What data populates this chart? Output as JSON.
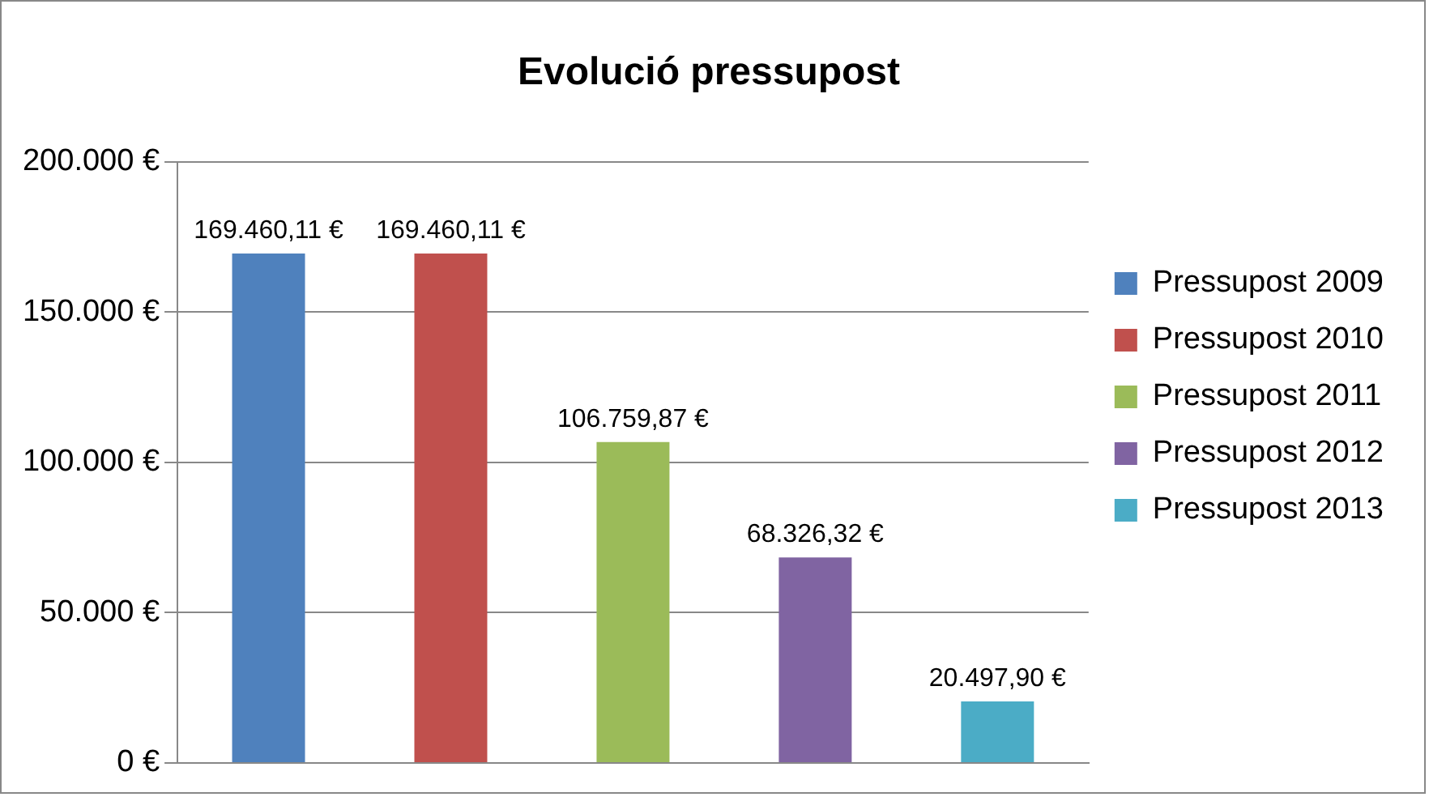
{
  "chart_data": {
    "type": "bar",
    "title": "Evolució pressupost",
    "categories": [
      null
    ],
    "series": [
      {
        "name": "Pressupost 2009",
        "color": "#4f81bd",
        "values": [
          169460.11
        ],
        "value_labels": [
          "169.460,11 €"
        ]
      },
      {
        "name": "Pressupost 2010",
        "color": "#c0504d",
        "values": [
          169460.11
        ],
        "value_labels": [
          "169.460,11 €"
        ]
      },
      {
        "name": "Pressupost 2011",
        "color": "#9bbb59",
        "values": [
          106759.87
        ],
        "value_labels": [
          "106.759,87 €"
        ]
      },
      {
        "name": "Pressupost 2012",
        "color": "#8064a2",
        "values": [
          68326.32
        ],
        "value_labels": [
          "68.326,32 €"
        ]
      },
      {
        "name": "Pressupost 2013",
        "color": "#4bacc6",
        "values": [
          20497.9
        ],
        "value_labels": [
          "20.497,90 €"
        ]
      }
    ],
    "ylim": [
      0,
      200000
    ],
    "yticks": [
      {
        "value": 0,
        "label": "0 €"
      },
      {
        "value": 50000,
        "label": "50.000 €"
      },
      {
        "value": 100000,
        "label": "100.000 €"
      },
      {
        "value": 150000,
        "label": "150.000 €"
      },
      {
        "value": 200000,
        "label": "200.000 €"
      }
    ],
    "grid": "y",
    "legend": "right",
    "tick_labels": "y"
  }
}
